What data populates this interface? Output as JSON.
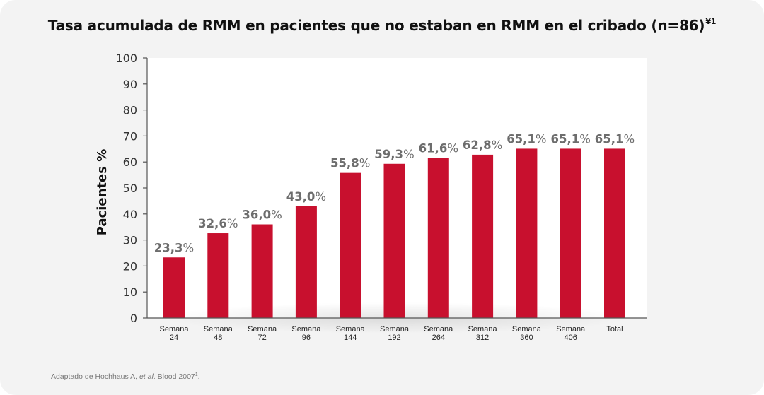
{
  "title": {
    "text": "Tasa acumulada de RMM en pacientes que no estaban en RMM en el cribado (n=86)",
    "superscript": "¥1"
  },
  "footnote": {
    "prefix": "Adaptado de Hochhaus A, ",
    "italic": "et al",
    "suffix": ". Blood 2007",
    "superscript": "1",
    "end": "."
  },
  "colors": {
    "bar": "#c8102e",
    "value_label": "#6d6d6d",
    "axis": "#555555",
    "plot_bg": "#ffffff",
    "card_bg": "#f3f3f3"
  },
  "chart_data": {
    "type": "bar",
    "title": "Tasa acumulada de RMM en pacientes que no estaban en RMM en el cribado (n=86)",
    "ylabel": "Pacientes %",
    "xlabel": "",
    "ylim": [
      0,
      100
    ],
    "yticks": [
      "0",
      "10",
      "20",
      "30",
      "40",
      "50",
      "60",
      "70",
      "80",
      "90",
      "100"
    ],
    "ytick_values": [
      0,
      10,
      20,
      30,
      40,
      50,
      60,
      70,
      80,
      90,
      100
    ],
    "categories": [
      [
        "Semana",
        "24"
      ],
      [
        "Semana",
        "48"
      ],
      [
        "Semana",
        "72"
      ],
      [
        "Semana",
        "96"
      ],
      [
        "Semana",
        "144"
      ],
      [
        "Semana",
        "192"
      ],
      [
        "Semana",
        "264"
      ],
      [
        "Semana",
        "312"
      ],
      [
        "Semana",
        "360"
      ],
      [
        "Semana",
        "406"
      ],
      [
        "Total"
      ]
    ],
    "values": [
      23.3,
      32.6,
      36.0,
      43.0,
      55.8,
      59.3,
      61.6,
      62.8,
      65.1,
      65.1,
      65.1
    ],
    "value_labels": [
      "23,3",
      "32,6",
      "36,0",
      "43,0",
      "55,8",
      "59,3",
      "61,6",
      "62,8",
      "65,1",
      "65,1",
      "65,1"
    ],
    "value_suffix": "%",
    "grid": false,
    "legend": "none"
  }
}
